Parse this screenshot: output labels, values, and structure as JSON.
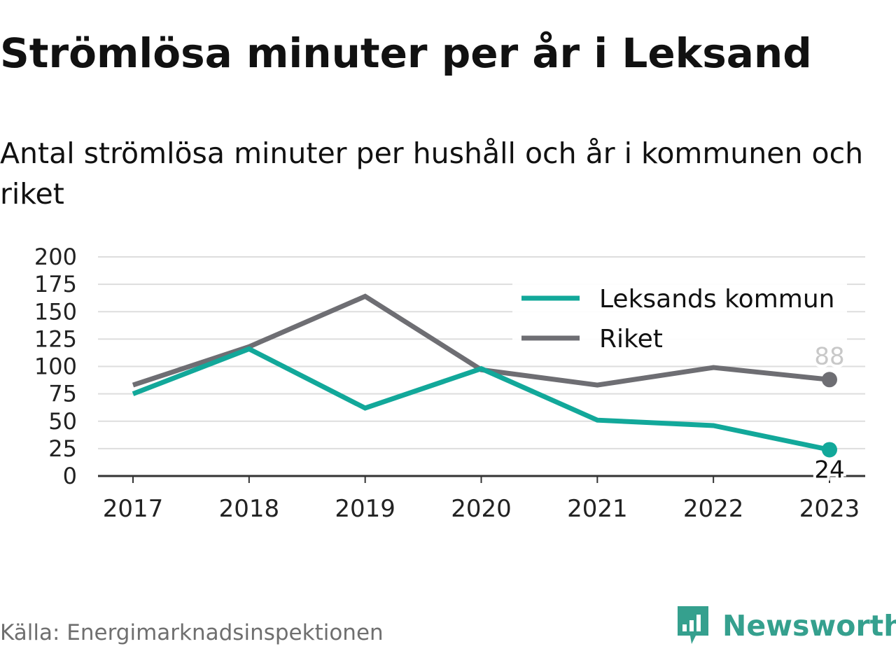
{
  "header": {
    "title": "Strömlösa minuter per år i Leksand",
    "subtitle": "Antal strömlösa minuter per hushåll och år i kommunen och riket"
  },
  "footer": {
    "source": "Källa: Energimarknadsinspektionen",
    "brand": "Newsworthy",
    "brand_icon": "bar-chart-speech-bubble-icon"
  },
  "chart_data": {
    "type": "line",
    "title": "Strömlösa minuter per år i Leksand",
    "subtitle": "Antal strömlösa minuter per hushåll och år i kommunen och riket",
    "x": [
      "2017",
      "2018",
      "2019",
      "2020",
      "2021",
      "2022",
      "2023"
    ],
    "ylim": [
      0,
      200
    ],
    "yticks": [
      0,
      25,
      50,
      75,
      100,
      125,
      150,
      175,
      200
    ],
    "grid": true,
    "legend_position": "top-right",
    "series": [
      {
        "name": "Leksands kommun",
        "color": "#12a89a",
        "values": [
          75,
          116,
          62,
          98,
          51,
          46,
          24
        ],
        "end_label": "24"
      },
      {
        "name": "Riket",
        "color": "#6e6e73",
        "values": [
          83,
          118,
          164,
          97,
          83,
          99,
          88
        ],
        "end_label": "88"
      }
    ]
  }
}
